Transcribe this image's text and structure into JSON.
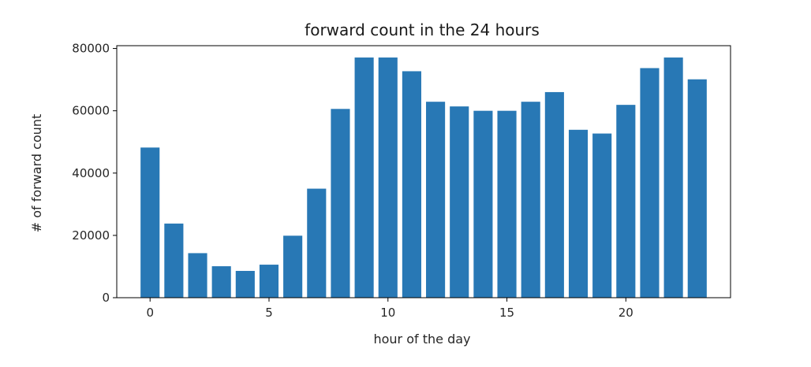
{
  "chart_data": {
    "type": "bar",
    "title": "forward count in the 24 hours",
    "xlabel": "hour of the day",
    "ylabel": "# of forward count",
    "x": [
      0,
      1,
      2,
      3,
      4,
      5,
      6,
      7,
      8,
      9,
      10,
      11,
      12,
      13,
      14,
      15,
      16,
      17,
      18,
      19,
      20,
      21,
      22,
      23
    ],
    "values": [
      48200,
      23800,
      14300,
      10100,
      8600,
      10600,
      19900,
      35000,
      60600,
      77100,
      77100,
      72700,
      62900,
      61400,
      60000,
      60000,
      62900,
      66000,
      53900,
      52700,
      61900,
      73700,
      77100,
      70100
    ],
    "xlim": [
      -1.4,
      24.4
    ],
    "ylim": [
      0,
      80900
    ],
    "xticks": [
      0,
      5,
      10,
      15,
      20
    ],
    "yticks": [
      0,
      20000,
      40000,
      60000,
      80000
    ],
    "bar_color": "#2878b5",
    "grid": false
  }
}
